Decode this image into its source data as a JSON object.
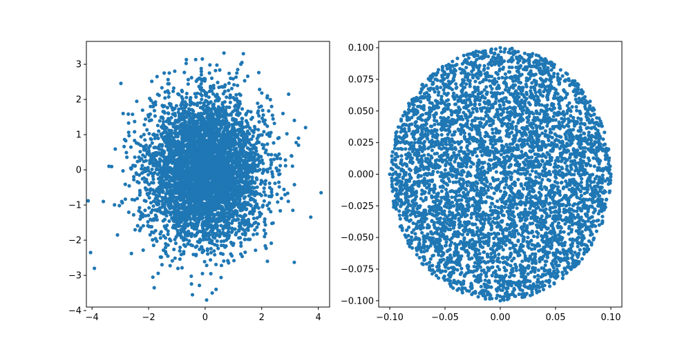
{
  "figure": {
    "background": "#ffffff"
  },
  "chart_data": [
    {
      "type": "scatter",
      "title": "",
      "xlabel": "",
      "ylabel": "",
      "xlim": [
        -4.2,
        4.4
      ],
      "ylim": [
        -3.9,
        3.65
      ],
      "xticks": [
        -4,
        -2,
        0,
        2,
        4
      ],
      "yticks": [
        -4,
        -3,
        -2,
        -1,
        0,
        1,
        2,
        3
      ],
      "xtick_labels": [
        "−4",
        "−2",
        "0",
        "2",
        "4"
      ],
      "ytick_labels": [
        "−4",
        "−3",
        "−2",
        "−1",
        "0",
        "1",
        "2",
        "3"
      ],
      "grid": false,
      "marker_color": "#1f77b4",
      "distribution": "bivariate standard normal, approximately 5000 samples, mean (0, 0), std 1",
      "sample_count": 5000,
      "series": [
        {
          "x": [
            -4.05,
            4.1,
            -3.6,
            3.55,
            3.3,
            -3.4,
            -3.1,
            3.1,
            2.95,
            -2.95,
            -2.9,
            3.05,
            2.2,
            -1.85,
            -1.8,
            -0.1,
            -0.45,
            0.25,
            1.35,
            1.3,
            1.15,
            0.9,
            -1.45,
            -1.7,
            2.2,
            2.35,
            2.75,
            3.3,
            -2.3,
            -2.6,
            0.05,
            0.2
          ],
          "y": [
            -2.35,
            -0.65,
            -0.9,
            1.2,
            0.9,
            0.1,
            -1.85,
            -1.15,
            2.15,
            -0.9,
            1.6,
            0.4,
            -2.6,
            -3.05,
            -3.35,
            3.15,
            -3.55,
            -3.5,
            3.3,
            3.05,
            2.85,
            2.6,
            2.75,
            2.65,
            2.1,
            1.8,
            1.6,
            0.7,
            -1.4,
            0.05,
            -3.7,
            -2.95
          ]
        }
      ]
    },
    {
      "type": "scatter",
      "title": "",
      "xlabel": "",
      "ylabel": "",
      "xlim": [
        -0.11,
        0.11
      ],
      "ylim": [
        -0.105,
        0.105
      ],
      "xticks": [
        -0.1,
        -0.05,
        0.0,
        0.05,
        0.1
      ],
      "yticks": [
        -0.1,
        -0.075,
        -0.05,
        -0.025,
        0.0,
        0.025,
        0.05,
        0.075,
        0.1
      ],
      "xtick_labels": [
        "−0.10",
        "−0.05",
        "0.00",
        "0.05",
        "0.10"
      ],
      "ytick_labels": [
        "−0.100",
        "−0.075",
        "−0.050",
        "−0.025",
        "0.000",
        "0.025",
        "0.050",
        "0.075",
        "0.100"
      ],
      "grid": false,
      "marker_color": "#1f77b4",
      "distribution": "uniform within a disk of radius 0.1 centered at (0, 0), approximately 5000 samples",
      "sample_count": 5000,
      "disk_radius": 0.1,
      "series": [
        {
          "x": [
            0.0,
            0.1,
            -0.1,
            0.0,
            0.0707,
            -0.0707,
            0.0707,
            -0.0707,
            0.05,
            -0.05,
            0.03,
            -0.03
          ],
          "y": [
            0.1,
            0.0,
            0.0,
            -0.1,
            0.0707,
            0.0707,
            -0.0707,
            -0.0707,
            0.0,
            0.0,
            0.04,
            -0.04
          ]
        }
      ]
    }
  ]
}
